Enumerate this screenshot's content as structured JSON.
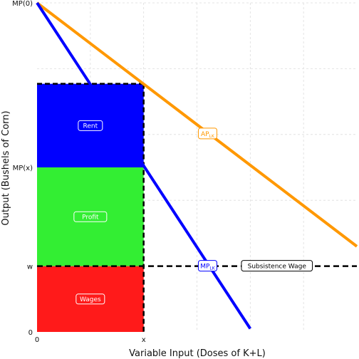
{
  "chart_data": {
    "type": "line",
    "title": "",
    "xlabel": "Variable Input (Doses of K+L)",
    "ylabel": "Output (Bushels of Corn)",
    "xlim": [
      0,
      6
    ],
    "ylim": [
      0,
      5
    ],
    "grid": true,
    "x_ticks": [
      {
        "value": 0,
        "label": "0"
      },
      {
        "value": 2,
        "label": "x"
      }
    ],
    "y_ticks": [
      {
        "value": 0,
        "label": "0"
      },
      {
        "value": 1,
        "label": "w"
      },
      {
        "value": 2.5,
        "label": "MP(x)"
      },
      {
        "value": 5,
        "label": "MP(0)"
      }
    ],
    "series": [
      {
        "name": "AP",
        "subscript": "LK",
        "color": "#ff9800",
        "x": [
          0,
          6
        ],
        "y": [
          5,
          1.3
        ]
      },
      {
        "name": "MP",
        "subscript": "LK",
        "color": "#0000ff",
        "x": [
          0,
          4
        ],
        "y": [
          5,
          0.05
        ]
      }
    ],
    "reference_lines": [
      {
        "label": "Subsistence Wage",
        "y": 1,
        "style": "dashed",
        "color": "#000000"
      }
    ],
    "regions": [
      {
        "label": "Wages",
        "color": "#ff1a1a",
        "x0": 0,
        "x1": 2,
        "y0": 0,
        "y1": 1
      },
      {
        "label": "Profit",
        "color": "#33ee33",
        "x0": 0,
        "x1": 2,
        "y0": 1,
        "y1": 2.5
      },
      {
        "label": "Rent",
        "color": "#0000ff",
        "x0": 0,
        "x1": 2,
        "y0": 2.5,
        "y1": 3.77
      }
    ],
    "annotations": [
      {
        "label": "AP",
        "subscript": "LK",
        "x": 3.2,
        "y": 3.01,
        "color": "#ff9800"
      },
      {
        "label": "MP",
        "subscript": "LK",
        "x": 3.2,
        "y": 1.0,
        "color": "#0000ff"
      },
      {
        "label": "Subsistence Wage",
        "x": 4.5,
        "y": 1.0,
        "color": "#000000"
      }
    ]
  }
}
